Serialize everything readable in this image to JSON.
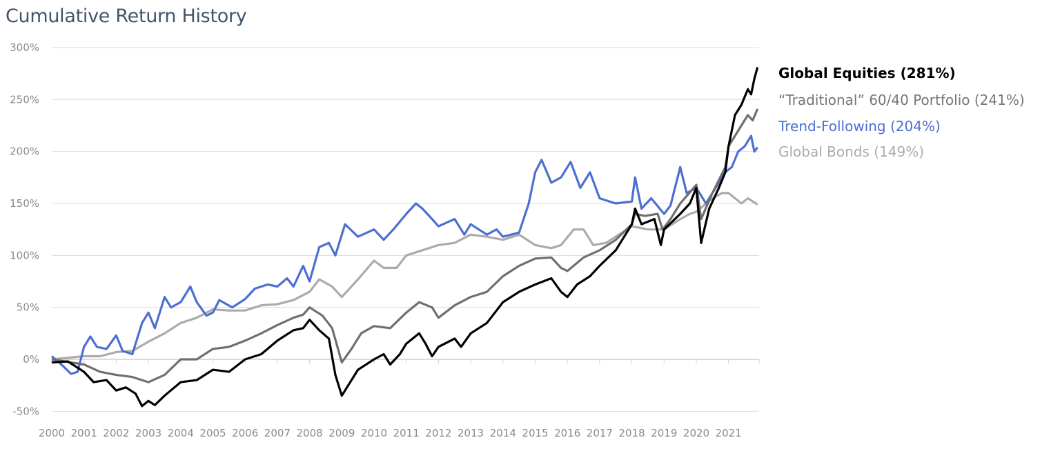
{
  "chart_data": {
    "type": "line",
    "title": "Cumulative Return History",
    "xlabel": "",
    "ylabel": "",
    "ylim": [
      -50,
      300
    ],
    "yticks": [
      "300%",
      "250%",
      "200%",
      "150%",
      "100%",
      "50%",
      "0%",
      "-50%"
    ],
    "ytick_values": [
      300,
      250,
      200,
      150,
      100,
      50,
      0,
      -50
    ],
    "xticks": [
      "2000",
      "2001",
      "2002",
      "2003",
      "2004",
      "2005",
      "2006",
      "2007",
      "2008",
      "2009",
      "2010",
      "2011",
      "2012",
      "2013",
      "2014",
      "2015",
      "2016",
      "2017",
      "2018",
      "2019",
      "2020",
      "2021"
    ],
    "xlim": [
      2000,
      2021.9
    ],
    "grid": true,
    "legend_placement": "right",
    "series": [
      {
        "name": "Global Equities (281%)",
        "color": "#000000",
        "x": [
          2000,
          2000.5,
          2001,
          2001.3,
          2001.7,
          2002,
          2002.3,
          2002.6,
          2002.8,
          2003,
          2003.2,
          2003.5,
          2004,
          2004.5,
          2005,
          2005.5,
          2006,
          2006.5,
          2007,
          2007.5,
          2007.8,
          2008,
          2008.3,
          2008.6,
          2008.8,
          2009,
          2009.2,
          2009.5,
          2010,
          2010.3,
          2010.5,
          2010.8,
          2011,
          2011.4,
          2011.6,
          2011.8,
          2012,
          2012.5,
          2012.7,
          2013,
          2013.5,
          2014,
          2014.5,
          2015,
          2015.5,
          2015.8,
          2016,
          2016.3,
          2016.7,
          2017,
          2017.5,
          2018,
          2018.1,
          2018.3,
          2018.7,
          2018.9,
          2019,
          2019.5,
          2019.8,
          2020,
          2020.15,
          2020.4,
          2020.7,
          2020.9,
          2021,
          2021.2,
          2021.4,
          2021.6,
          2021.7,
          2021.8,
          2021.9
        ],
        "y": [
          -3,
          -2,
          -12,
          -22,
          -20,
          -30,
          -27,
          -33,
          -45,
          -40,
          -44,
          -35,
          -22,
          -20,
          -10,
          -12,
          0,
          5,
          18,
          28,
          30,
          38,
          28,
          20,
          -15,
          -35,
          -25,
          -10,
          0,
          5,
          -5,
          5,
          15,
          25,
          15,
          3,
          12,
          20,
          12,
          25,
          35,
          55,
          65,
          72,
          78,
          65,
          60,
          72,
          80,
          90,
          105,
          130,
          145,
          130,
          135,
          110,
          125,
          140,
          150,
          165,
          112,
          145,
          165,
          180,
          205,
          235,
          245,
          260,
          255,
          270,
          281
        ]
      },
      {
        "name": "“Traditional” 60/40 Portfolio (241%)",
        "color": "#6f6f6f",
        "x": [
          2000,
          2001,
          2001.5,
          2002,
          2002.5,
          2003,
          2003.5,
          2004,
          2004.5,
          2005,
          2005.5,
          2006,
          2006.5,
          2007,
          2007.5,
          2007.8,
          2008,
          2008.4,
          2008.7,
          2009,
          2009.3,
          2009.6,
          2010,
          2010.5,
          2011,
          2011.4,
          2011.8,
          2012,
          2012.5,
          2013,
          2013.5,
          2014,
          2014.5,
          2015,
          2015.5,
          2015.8,
          2016,
          2016.5,
          2017,
          2017.5,
          2018,
          2018.1,
          2018.4,
          2018.8,
          2018.95,
          2019.2,
          2019.5,
          2020,
          2020.15,
          2020.5,
          2020.9,
          2021,
          2021.3,
          2021.6,
          2021.75,
          2021.9
        ],
        "y": [
          0,
          -5,
          -12,
          -15,
          -17,
          -22,
          -15,
          0,
          0,
          10,
          12,
          18,
          25,
          33,
          40,
          43,
          50,
          42,
          30,
          -3,
          10,
          25,
          32,
          30,
          45,
          55,
          50,
          40,
          52,
          60,
          65,
          80,
          90,
          97,
          98,
          88,
          85,
          98,
          105,
          115,
          130,
          140,
          138,
          140,
          125,
          135,
          150,
          168,
          135,
          160,
          185,
          205,
          220,
          235,
          230,
          241
        ]
      },
      {
        "name": "Trend-Following (204%)",
        "color": "#4d6fd0",
        "x": [
          2000,
          2000.3,
          2000.6,
          2000.8,
          2001,
          2001.2,
          2001.4,
          2001.7,
          2002,
          2002.2,
          2002.5,
          2002.8,
          2003,
          2003.2,
          2003.5,
          2003.7,
          2004,
          2004.3,
          2004.5,
          2004.8,
          2005,
          2005.2,
          2005.6,
          2006,
          2006.3,
          2006.7,
          2007,
          2007.3,
          2007.5,
          2007.8,
          2008,
          2008.3,
          2008.6,
          2008.8,
          2009.1,
          2009.5,
          2010,
          2010.3,
          2010.6,
          2011,
          2011.3,
          2011.5,
          2011.8,
          2012,
          2012.5,
          2012.8,
          2013,
          2013.5,
          2013.8,
          2014,
          2014.5,
          2014.8,
          2015,
          2015.2,
          2015.5,
          2015.8,
          2016.1,
          2016.4,
          2016.7,
          2017,
          2017.5,
          2018,
          2018.1,
          2018.3,
          2018.6,
          2019,
          2019.2,
          2019.5,
          2019.7,
          2020,
          2020.3,
          2020.6,
          2020.9,
          2021.1,
          2021.3,
          2021.5,
          2021.7,
          2021.8,
          2021.9
        ],
        "y": [
          3,
          -5,
          -14,
          -12,
          12,
          22,
          12,
          10,
          23,
          8,
          5,
          35,
          45,
          30,
          60,
          50,
          55,
          70,
          55,
          42,
          45,
          57,
          50,
          58,
          68,
          72,
          70,
          78,
          70,
          90,
          75,
          108,
          112,
          100,
          130,
          118,
          125,
          115,
          125,
          140,
          150,
          145,
          135,
          128,
          135,
          120,
          130,
          120,
          125,
          118,
          122,
          150,
          180,
          192,
          170,
          175,
          190,
          165,
          180,
          155,
          150,
          152,
          175,
          145,
          155,
          140,
          148,
          185,
          160,
          165,
          150,
          165,
          180,
          185,
          200,
          205,
          215,
          200,
          204
        ]
      },
      {
        "name": "Global Bonds (149%)",
        "color": "#ababab",
        "x": [
          2000,
          2001,
          2001.5,
          2002,
          2002.5,
          2003,
          2003.5,
          2004,
          2004.5,
          2005,
          2005.5,
          2006,
          2006.5,
          2007,
          2007.5,
          2008,
          2008.3,
          2008.7,
          2009,
          2009.5,
          2010,
          2010.3,
          2010.7,
          2011,
          2011.5,
          2012,
          2012.5,
          2013,
          2013.5,
          2014,
          2014.5,
          2015,
          2015.5,
          2015.8,
          2016.2,
          2016.5,
          2016.8,
          2017.2,
          2017.7,
          2018,
          2018.5,
          2019,
          2019.5,
          2019.8,
          2020,
          2020.5,
          2020.8,
          2021,
          2021.4,
          2021.6,
          2021.9
        ],
        "y": [
          0,
          3,
          3,
          7,
          8,
          17,
          25,
          35,
          40,
          48,
          47,
          47,
          52,
          53,
          57,
          65,
          77,
          70,
          60,
          77,
          95,
          88,
          88,
          100,
          105,
          110,
          112,
          120,
          118,
          115,
          120,
          110,
          107,
          110,
          125,
          125,
          110,
          112,
          122,
          128,
          125,
          125,
          135,
          140,
          142,
          155,
          160,
          160,
          150,
          155,
          149
        ]
      }
    ]
  }
}
